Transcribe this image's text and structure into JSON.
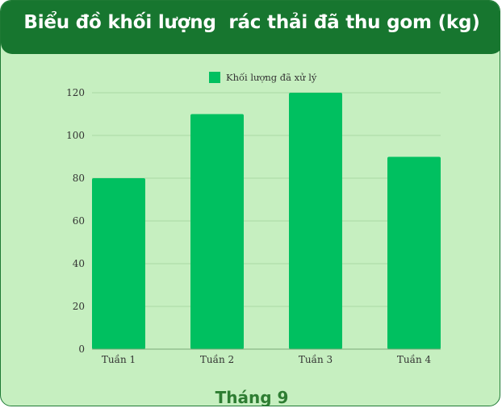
{
  "header": {
    "title": "Biểu đồ khối lượng  rác thải đã thu gom (kg)"
  },
  "footer": {
    "label": "Tháng 9"
  },
  "colors": {
    "bar": "#00c060",
    "header": "#17762f",
    "background": "#c6efc0",
    "grid": "#a9d9a3"
  },
  "chart_data": {
    "type": "bar",
    "title": "Biểu đồ khối lượng  rác thải đã thu gom (kg)",
    "xlabel": "Tháng 9",
    "ylabel": "",
    "categories": [
      "Tuần 1",
      "Tuần 2",
      "Tuần 3",
      "Tuần 4"
    ],
    "series": [
      {
        "name": "Khối lượng đã xử lý",
        "values": [
          80,
          110,
          120,
          90
        ]
      }
    ],
    "ylim": [
      0,
      120
    ],
    "yticks": [
      0,
      20,
      40,
      60,
      80,
      100,
      120
    ],
    "grid": true,
    "legend": "top-center"
  }
}
